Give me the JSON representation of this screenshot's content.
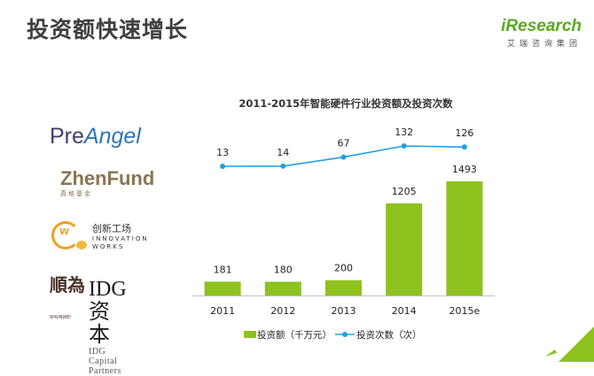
{
  "page": {
    "title": "投资额快速增长"
  },
  "brand": {
    "name": "iResearch",
    "subtitle": "艾瑞咨询集团"
  },
  "logos": {
    "preangel": {
      "pre": "Pre",
      "angel": "Angel"
    },
    "zhenfund": {
      "name": "ZhenFund",
      "sub": "真格基金"
    },
    "innovation": {
      "cn": "创新工场",
      "en1": "INNOVATION",
      "en2": "WORKS",
      "mark": "W"
    },
    "idg": {
      "shun": "順為",
      "shun_en": "SHUNWEI",
      "name": "IDG资本",
      "sub": "IDG Capital Partners"
    }
  },
  "colors": {
    "bar": "#8dc21f",
    "line": "#1ea0e6",
    "brand": "#5aa91e"
  },
  "chart_data": {
    "type": "bar",
    "title": "2011-2015年智能硬件行业投资额及投资次数",
    "categories": [
      "2011",
      "2012",
      "2013",
      "2014",
      "2015e"
    ],
    "series": [
      {
        "name": "投资额（千万元）",
        "type": "bar",
        "values": [
          181,
          180,
          200,
          1205,
          1493
        ]
      },
      {
        "name": "投资次数（次）",
        "type": "line",
        "values": [
          13,
          14,
          67,
          132,
          126
        ]
      }
    ],
    "legend": "bottom",
    "grid": false
  }
}
